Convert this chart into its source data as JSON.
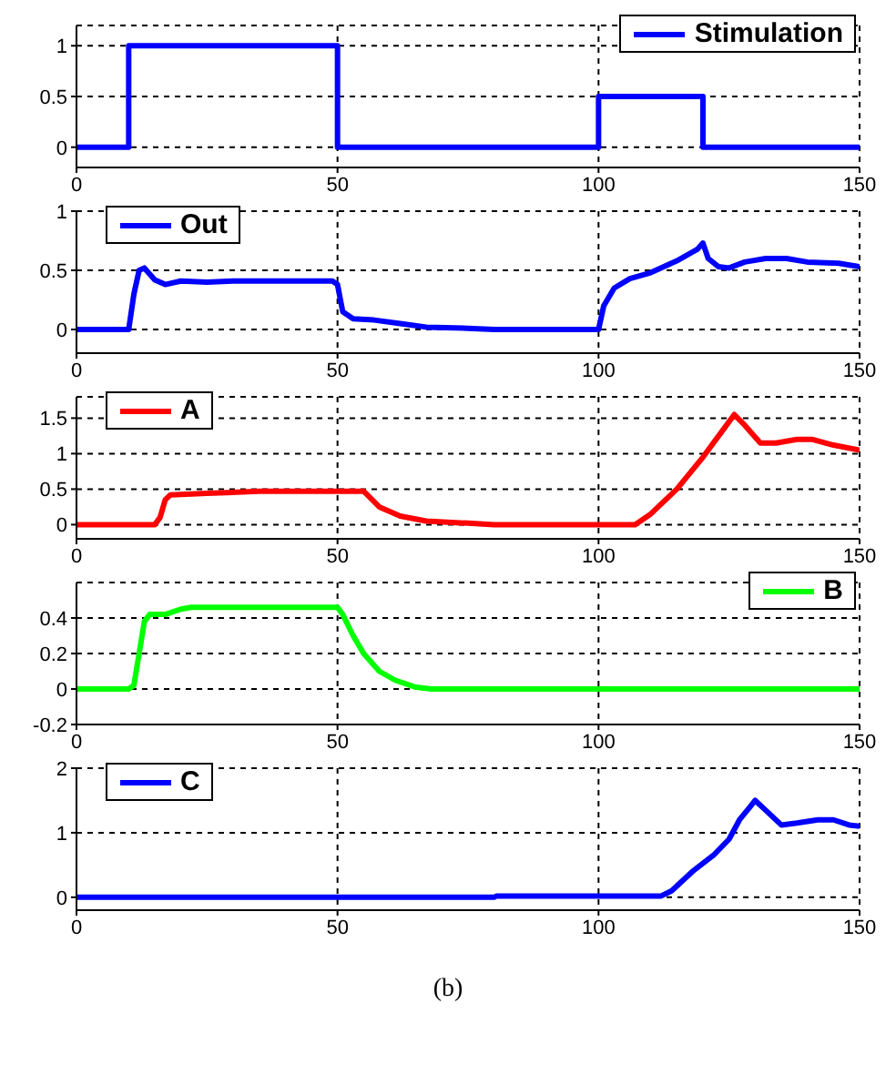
{
  "chart_data": [
    {
      "type": "line",
      "x": [
        0,
        10,
        10,
        50,
        50,
        100,
        100,
        120,
        120,
        150
      ],
      "series": [
        {
          "name": "Stimulation",
          "color": "#0000ff",
          "values": [
            0,
            0,
            1,
            1,
            0,
            0,
            0.5,
            0.5,
            0,
            0
          ]
        }
      ],
      "xlim": [
        0,
        150
      ],
      "xticks": [
        0,
        50,
        100,
        150
      ],
      "ylim": [
        -0.2,
        1.2
      ],
      "yticks": [
        0,
        0.5,
        1
      ],
      "grid": true,
      "legend": "top right",
      "marker": "none",
      "line_style": "solid"
    },
    {
      "type": "line",
      "x": [
        0,
        10,
        11,
        12,
        13,
        15,
        17,
        20,
        25,
        30,
        49,
        50,
        51,
        53,
        57,
        62,
        67,
        75,
        80,
        100,
        101,
        103,
        106,
        110,
        115,
        119,
        120,
        121,
        123,
        125,
        128,
        132,
        136,
        140,
        146,
        150
      ],
      "series": [
        {
          "name": "Out",
          "color": "#0000ff",
          "values": [
            0,
            0,
            0.3,
            0.5,
            0.52,
            0.42,
            0.38,
            0.41,
            0.4,
            0.41,
            0.41,
            0.38,
            0.15,
            0.09,
            0.08,
            0.05,
            0.02,
            0.01,
            0,
            0,
            0.2,
            0.35,
            0.43,
            0.48,
            0.58,
            0.68,
            0.73,
            0.6,
            0.53,
            0.52,
            0.57,
            0.6,
            0.6,
            0.57,
            0.56,
            0.53
          ]
        }
      ],
      "xlim": [
        0,
        150
      ],
      "xticks": [
        0,
        50,
        100,
        150
      ],
      "ylim": [
        -0.2,
        1
      ],
      "yticks": [
        0,
        0.5,
        1
      ],
      "grid": true,
      "legend": "top left",
      "marker": "none",
      "line_style": "solid"
    },
    {
      "type": "line",
      "x": [
        0,
        15,
        16,
        17,
        18,
        25,
        35,
        50,
        55,
        58,
        62,
        67,
        75,
        80,
        107,
        110,
        115,
        120,
        124,
        126,
        128,
        131,
        134,
        138,
        141,
        145,
        150
      ],
      "series": [
        {
          "name": "A",
          "color": "#ff0000",
          "values": [
            0,
            0,
            0.1,
            0.35,
            0.42,
            0.44,
            0.47,
            0.47,
            0.47,
            0.25,
            0.12,
            0.05,
            0.02,
            0,
            0,
            0.15,
            0.5,
            0.95,
            1.35,
            1.55,
            1.4,
            1.15,
            1.15,
            1.2,
            1.2,
            1.12,
            1.05
          ]
        }
      ],
      "xlim": [
        0,
        150
      ],
      "xticks": [
        0,
        50,
        100,
        150
      ],
      "ylim": [
        -0.2,
        1.8
      ],
      "yticks": [
        0,
        0.5,
        1,
        1.5
      ],
      "grid": true,
      "legend": "top left",
      "marker": "none",
      "line_style": "solid"
    },
    {
      "type": "line",
      "x": [
        0,
        10,
        11,
        12,
        13,
        14,
        17,
        20,
        22,
        50,
        51,
        53,
        55,
        58,
        61,
        65,
        68,
        150
      ],
      "series": [
        {
          "name": "B",
          "color": "#00ff00",
          "values": [
            0,
            0,
            0.02,
            0.2,
            0.38,
            0.42,
            0.42,
            0.45,
            0.46,
            0.46,
            0.42,
            0.3,
            0.2,
            0.1,
            0.05,
            0.01,
            0,
            0
          ]
        }
      ],
      "xlim": [
        0,
        150
      ],
      "xticks": [
        0,
        50,
        100,
        150
      ],
      "ylim": [
        -0.2,
        0.6
      ],
      "yticks": [
        -0.2,
        0,
        0.2,
        0.4
      ],
      "grid": true,
      "legend": "top right",
      "marker": "none",
      "line_style": "solid"
    },
    {
      "type": "line",
      "x": [
        0,
        80,
        80.5,
        100,
        112,
        114,
        118,
        122,
        125,
        127,
        129,
        130,
        132,
        135,
        138,
        142,
        145,
        148,
        150
      ],
      "series": [
        {
          "name": "C",
          "color": "#0000ff",
          "values": [
            0,
            0,
            0.02,
            0.02,
            0.02,
            0.1,
            0.4,
            0.65,
            0.9,
            1.2,
            1.4,
            1.5,
            1.35,
            1.12,
            1.15,
            1.2,
            1.2,
            1.12,
            1.1
          ]
        }
      ],
      "xlim": [
        0,
        150
      ],
      "xticks": [
        0,
        50,
        100,
        150
      ],
      "ylim": [
        -0.2,
        2
      ],
      "yticks": [
        0,
        1,
        2
      ],
      "grid": true,
      "legend": "top left",
      "marker": "none",
      "line_style": "solid",
      "annotations": [
        "(b)"
      ]
    }
  ]
}
